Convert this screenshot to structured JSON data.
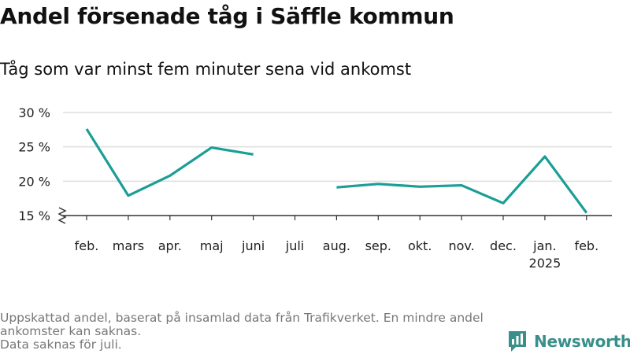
{
  "title": "Andel försenade tåg i Säffle kommun",
  "subtitle": "Tåg som var minst fem minuter sena vid ankomst",
  "footer": {
    "line1": "Uppskattad andel, baserat på insamlad data från Trafikverket. En mindre andel",
    "line2": "ankomster kan saknas.",
    "line3": "Data saknas för juli."
  },
  "brand": {
    "name": "Newsworthy",
    "icon": "newsworthy-logo-icon",
    "color": "#3a8f8a"
  },
  "colors": {
    "line": "#1a9e96",
    "grid": "#dddddd",
    "axis": "#333333"
  },
  "chart_data": {
    "type": "line",
    "categories": [
      "feb.",
      "mars",
      "apr.",
      "maj",
      "juni",
      "juli",
      "aug.",
      "sep.",
      "okt.",
      "nov.",
      "dec.",
      "jan.",
      "feb."
    ],
    "category_sublabels": [
      "",
      "",
      "",
      "",
      "",
      "",
      "",
      "",
      "",
      "",
      "",
      "2025",
      ""
    ],
    "series": [
      {
        "values": [
          27.6,
          17.9,
          20.8,
          24.9,
          23.9,
          null,
          19.1,
          19.6,
          19.2,
          19.4,
          16.8,
          23.6,
          15.4
        ]
      }
    ],
    "yticks": [
      15,
      20,
      25,
      30
    ],
    "ytick_labels": [
      "15 %",
      "20 %",
      "25 %",
      "30 %"
    ],
    "ylim": [
      15,
      30
    ],
    "y_axis_break": true,
    "grid": true,
    "xlabel": "",
    "ylabel": ""
  }
}
